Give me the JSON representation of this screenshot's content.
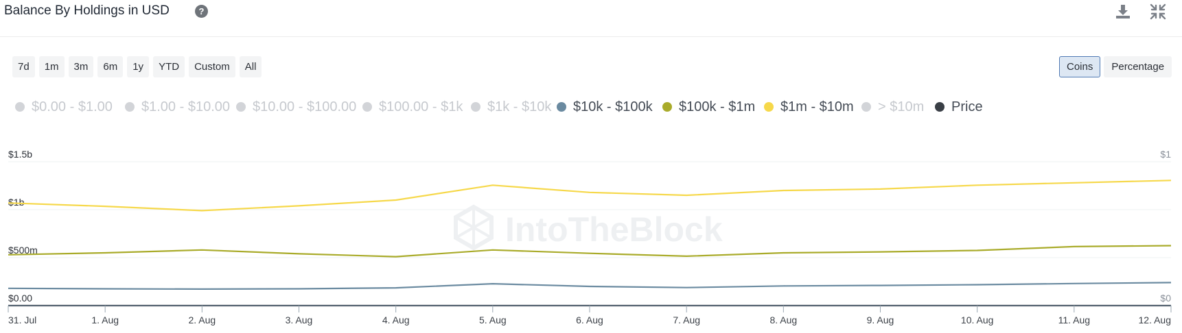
{
  "header": {
    "title": "Balance By Holdings in USD",
    "help_icon": "question-circle-icon",
    "download_icon": "download-icon",
    "collapse_icon": "collapse-icon"
  },
  "range_buttons": [
    "7d",
    "1m",
    "3m",
    "6m",
    "1y",
    "YTD",
    "Custom",
    "All"
  ],
  "mode_buttons": [
    {
      "label": "Coins",
      "active": true
    },
    {
      "label": "Percentage",
      "active": false
    }
  ],
  "watermark": "IntoTheBlock",
  "chart_data": {
    "type": "line",
    "title": "Balance By Holdings in USD",
    "categories": [
      "31. Jul",
      "1. Aug",
      "2. Aug",
      "3. Aug",
      "4. Aug",
      "5. Aug",
      "6. Aug",
      "7. Aug",
      "8. Aug",
      "9. Aug",
      "10. Aug",
      "11. Aug",
      "12. Aug"
    ],
    "y_left": {
      "ticks": [
        "$0.00",
        "$500m",
        "$1b",
        "$1.5b"
      ],
      "range": [
        0,
        1500000000
      ]
    },
    "y_right": {
      "ticks": [
        "$0",
        "$1"
      ],
      "range": [
        0,
        1
      ]
    },
    "legend_position": "top",
    "legend": [
      {
        "name": "$0.00 - $1.00",
        "enabled": false
      },
      {
        "name": "$1.00 - $10.00",
        "enabled": false
      },
      {
        "name": "$10.00 - $100.00",
        "enabled": false
      },
      {
        "name": "$100.00 - $1k",
        "enabled": false
      },
      {
        "name": "$1k - $10k",
        "enabled": false
      },
      {
        "name": "$10k - $100k",
        "enabled": true,
        "color": "#6a8aa0"
      },
      {
        "name": "$100k - $1m",
        "enabled": true,
        "color": "#a9ab2a"
      },
      {
        "name": "$1m - $10m",
        "enabled": true,
        "color": "#f6d84a"
      },
      {
        "name": "> $10m",
        "enabled": false
      },
      {
        "name": "Price",
        "enabled": true,
        "color": "#3a3f46"
      }
    ],
    "series": [
      {
        "name": "$1m - $10m",
        "color": "#f6d84a",
        "axis": "left",
        "values": [
          1070000000,
          1035000000,
          990000000,
          1040000000,
          1100000000,
          1255000000,
          1180000000,
          1150000000,
          1200000000,
          1215000000,
          1255000000,
          1280000000,
          1305000000
        ]
      },
      {
        "name": "$100k - $1m",
        "color": "#a9ab2a",
        "axis": "left",
        "values": [
          530000000,
          550000000,
          580000000,
          540000000,
          510000000,
          580000000,
          545000000,
          515000000,
          550000000,
          560000000,
          575000000,
          615000000,
          625000000
        ]
      },
      {
        "name": "$10k - $100k",
        "color": "#6a8aa0",
        "axis": "left",
        "values": [
          180000000,
          175000000,
          172000000,
          175000000,
          185000000,
          228000000,
          200000000,
          188000000,
          205000000,
          210000000,
          218000000,
          230000000,
          240000000
        ]
      },
      {
        "name": "Price",
        "color": "#3a3f46",
        "axis": "right",
        "values": [
          0,
          0,
          0,
          0,
          0,
          0,
          0,
          0,
          0,
          0,
          0,
          0,
          0
        ]
      }
    ],
    "grid": true
  }
}
